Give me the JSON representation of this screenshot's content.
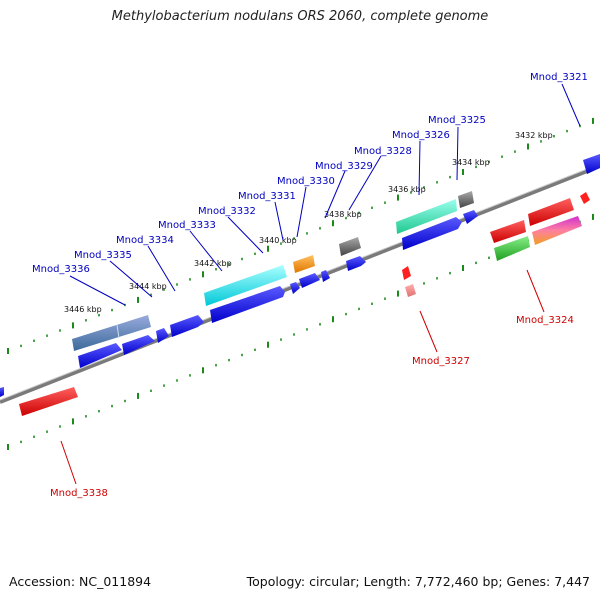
{
  "title": "Methylobacterium nodulans ORS 2060, complete genome",
  "footer": {
    "accession": "Accession: NC_011894",
    "summary": "Topology: circular; Length: 7,772,460 bp; Genes: 7,447"
  },
  "colors": {
    "backbone": "#7a7a7a",
    "tick": "#1a8a1a",
    "forward_label": "#0000c0",
    "reverse_label": "#d00000",
    "strand_forward": "#0000ee",
    "strand_reverse": "#ee0000"
  },
  "kbp_labels": [
    "3432 kbp",
    "3434 kbp",
    "3436 kbp",
    "3438 kbp",
    "3440 kbp",
    "3442 kbp",
    "3444 kbp",
    "3446 kbp"
  ],
  "gene_labels_forward": [
    "Mnod_3321",
    "Mnod_3325",
    "Mnod_3326",
    "Mnod_3328",
    "Mnod_3329",
    "Mnod_3330",
    "Mnod_3331",
    "Mnod_3332",
    "Mnod_3333",
    "Mnod_3334",
    "Mnod_3335",
    "Mnod_3336"
  ],
  "gene_labels_reverse": [
    "Mnod_3324",
    "Mnod_3327",
    "Mnod_3338"
  ]
}
